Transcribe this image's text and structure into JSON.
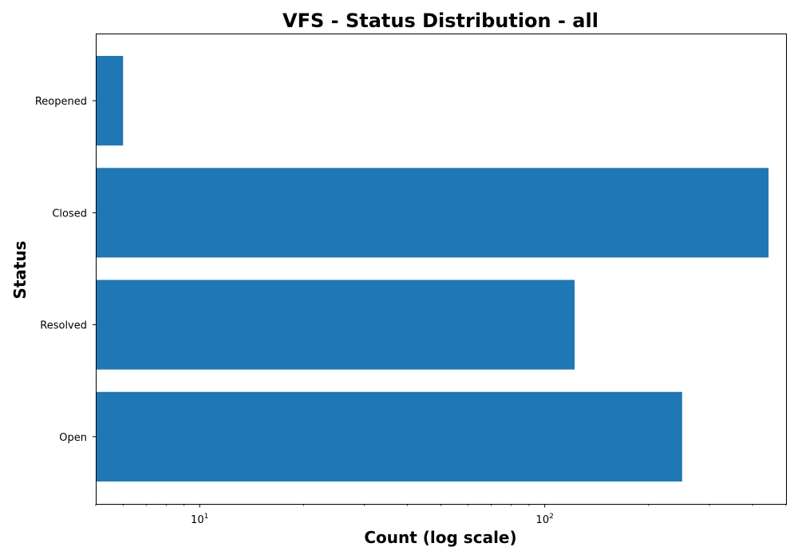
{
  "chart_data": {
    "type": "bar",
    "orientation": "horizontal",
    "title": "VFS - Status Distribution - all",
    "xlabel": "Count (log scale)",
    "ylabel": "Status",
    "x_scale": "log",
    "xlim": [
      5,
      500
    ],
    "categories": [
      "Open",
      "Resolved",
      "Closed",
      "Reopened"
    ],
    "values": [
      250,
      122,
      445,
      6
    ],
    "x_major_ticks": [
      {
        "value": 10,
        "base": "10",
        "exponent": "1"
      },
      {
        "value": 100,
        "base": "10",
        "exponent": "2"
      }
    ],
    "bar_color": "#1f77b4",
    "grid": false,
    "legend": "none"
  }
}
